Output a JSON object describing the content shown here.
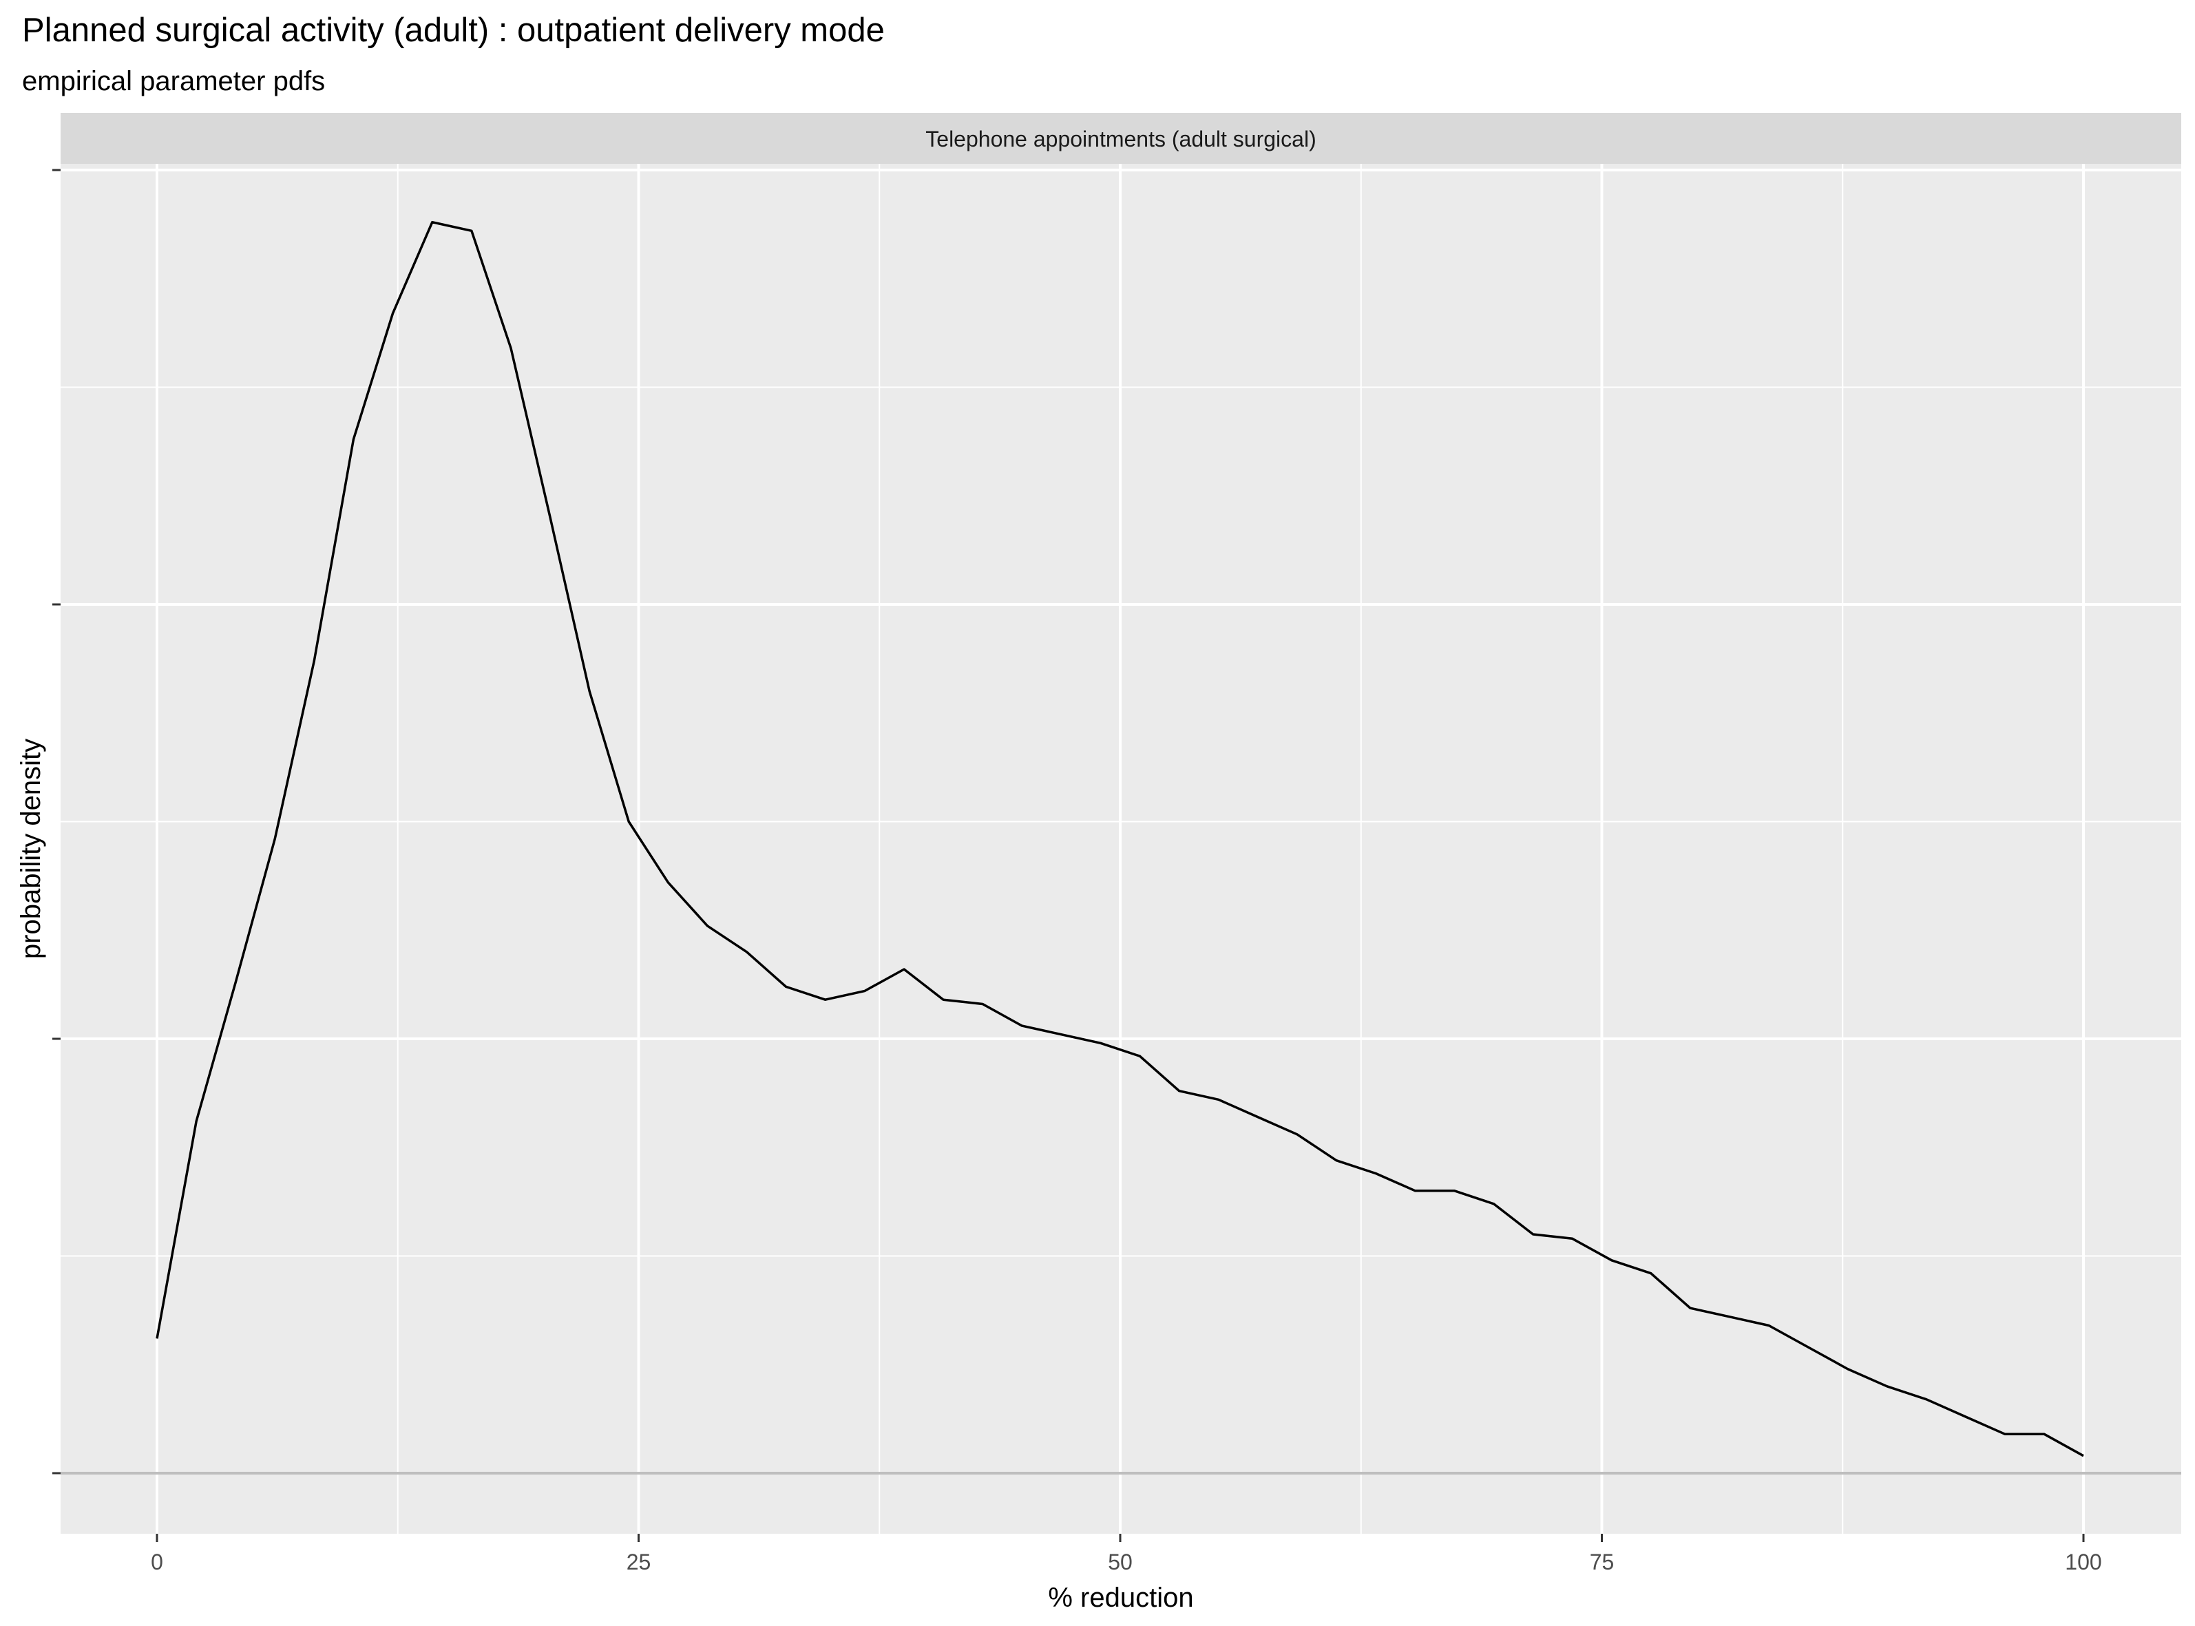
{
  "chart_data": {
    "type": "line",
    "title": "Planned surgical activity (adult) : outpatient delivery mode",
    "subtitle": "empirical parameter pdfs",
    "facet_label": "Telephone appointments (adult surgical)",
    "xlabel": "% reduction",
    "ylabel": "probability density",
    "xlim": [
      0,
      100
    ],
    "x_ticks": [
      0,
      25,
      50,
      75,
      100
    ],
    "x_tick_labels": [
      "0",
      "25",
      "50",
      "75",
      "100"
    ],
    "y_ticks_labelled": false,
    "ylim": [
      0,
      3.0
    ],
    "y_ticks": [
      0,
      1,
      2,
      3
    ],
    "grid": true,
    "background": "#EBEBEB",
    "strip_background": "#D9D9D9",
    "line_color": "#000000",
    "series": [
      {
        "x": [
          0,
          2.04,
          4.08,
          6.12,
          8.16,
          10.2,
          12.24,
          14.29,
          16.33,
          18.37,
          20.41,
          22.45,
          24.49,
          26.53,
          28.57,
          30.61,
          32.65,
          34.69,
          36.73,
          38.78,
          40.82,
          42.86,
          44.9,
          46.94,
          48.98,
          51.02,
          53.06,
          55.1,
          57.14,
          59.18,
          61.22,
          63.27,
          65.31,
          67.35,
          69.39,
          71.43,
          73.47,
          75.51,
          77.55,
          79.59,
          81.63,
          83.67,
          85.71,
          87.76,
          89.8,
          91.84,
          93.88,
          95.92,
          97.96,
          100
        ],
        "y": [
          0.31,
          0.81,
          1.13,
          1.46,
          1.87,
          2.38,
          2.67,
          2.88,
          2.86,
          2.59,
          2.2,
          1.8,
          1.5,
          1.36,
          1.26,
          1.2,
          1.12,
          1.09,
          1.11,
          1.16,
          1.09,
          1.08,
          1.03,
          1.01,
          0.99,
          0.96,
          0.88,
          0.86,
          0.82,
          0.78,
          0.72,
          0.69,
          0.65,
          0.65,
          0.62,
          0.55,
          0.54,
          0.49,
          0.46,
          0.38,
          0.36,
          0.34,
          0.29,
          0.24,
          0.2,
          0.17,
          0.13,
          0.09,
          0.09,
          0.04
        ]
      }
    ]
  }
}
